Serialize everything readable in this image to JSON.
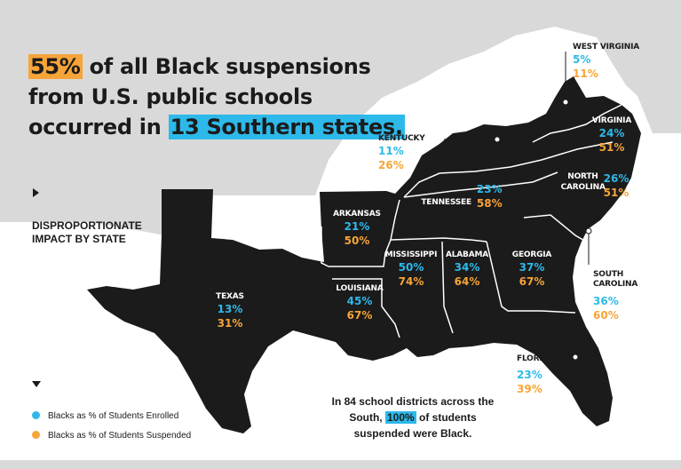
{
  "headline": {
    "hl1": "55%",
    "part1": " of all Black suspensions from U.S. public schools occurred in ",
    "hl2": "13 Southern states."
  },
  "section_label": "DISPROPORTIONATE\nIMPACT BY STATE",
  "legend": [
    {
      "label": "Blacks as % of Students Enrolled",
      "color": "#2db9e9"
    },
    {
      "label": "Blacks as % of Students Suspended",
      "color": "#f7a438"
    }
  ],
  "states": [
    {
      "id": "west-virginia",
      "name": "WEST VIRGINIA",
      "enrolled": "5%",
      "suspended": "11%"
    },
    {
      "id": "virginia",
      "name": "VIRGINIA",
      "enrolled": "24%",
      "suspended": "51%"
    },
    {
      "id": "kentucky",
      "name": "KENTUCKY",
      "enrolled": "11%",
      "suspended": "26%"
    },
    {
      "id": "north-carolina",
      "name": "NORTH CAROLINA",
      "enrolled": "26%",
      "suspended": "51%"
    },
    {
      "id": "tennessee",
      "name": "TENNESSEE",
      "enrolled": "23%",
      "suspended": "58%"
    },
    {
      "id": "arkansas",
      "name": "ARKANSAS",
      "enrolled": "21%",
      "suspended": "50%"
    },
    {
      "id": "mississippi",
      "name": "MISSISSIPPI",
      "enrolled": "50%",
      "suspended": "74%"
    },
    {
      "id": "alabama",
      "name": "ALABAMA",
      "enrolled": "34%",
      "suspended": "64%"
    },
    {
      "id": "georgia",
      "name": "GEORGIA",
      "enrolled": "37%",
      "suspended": "67%"
    },
    {
      "id": "south-carolina",
      "name": "SOUTH CAROLINA",
      "enrolled": "36%",
      "suspended": "60%"
    },
    {
      "id": "louisiana",
      "name": "LOUISIANA",
      "enrolled": "45%",
      "suspended": "67%"
    },
    {
      "id": "texas",
      "name": "TEXAS",
      "enrolled": "13%",
      "suspended": "31%"
    },
    {
      "id": "florida",
      "name": "FLORIDA",
      "enrolled": "23%",
      "suspended": "39%"
    }
  ],
  "note": {
    "part1": "In 84 school districts across the South, ",
    "hl": "100%",
    "part2": " of students suspended were Black."
  },
  "colors": {
    "dark": "#1b1b1b",
    "blue": "#2db9e9",
    "orange": "#f7a438",
    "gray": "#d9d9d9"
  }
}
